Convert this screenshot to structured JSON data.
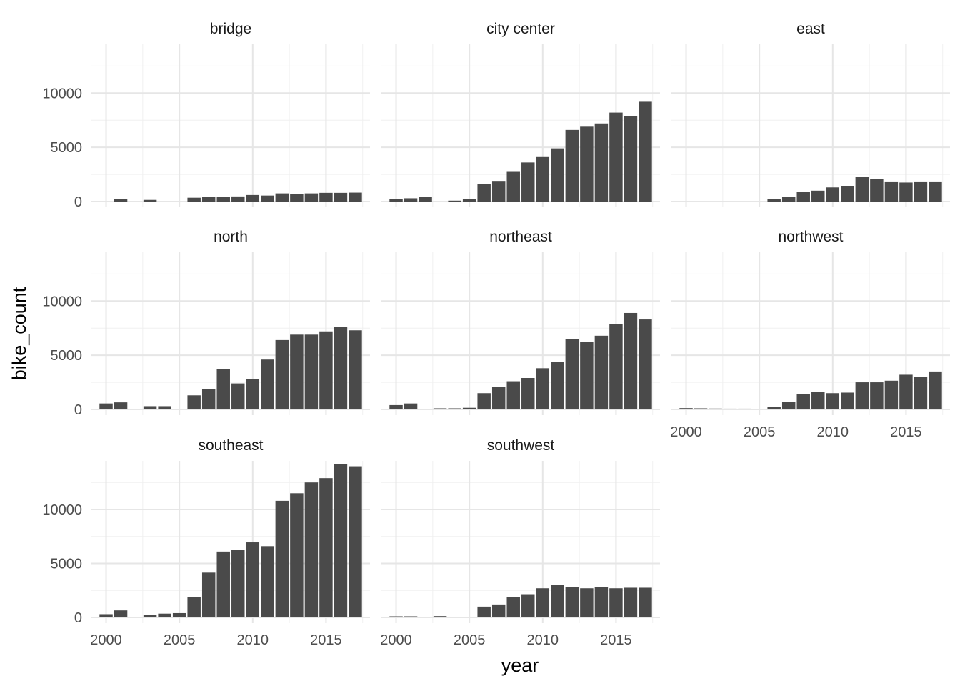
{
  "chart_data": {
    "type": "bar",
    "xlabel": "year",
    "ylabel": "bike_count",
    "xlim": [
      1999,
      2018
    ],
    "ylim": [
      0,
      14500
    ],
    "x_ticks": [
      2000,
      2005,
      2010,
      2015
    ],
    "x_tick_labels": [
      "2000",
      "2005",
      "2010",
      "2015"
    ],
    "y_ticks": [
      0,
      5000,
      10000
    ],
    "y_tick_labels": [
      "0",
      "5000",
      "10000"
    ],
    "grid": true,
    "bar_color": "#4a4a4a",
    "years": [
      2000,
      2001,
      2002,
      2003,
      2004,
      2005,
      2006,
      2007,
      2008,
      2009,
      2010,
      2011,
      2012,
      2013,
      2014,
      2015,
      2016,
      2017
    ],
    "panels": [
      {
        "name": "bridge",
        "values": [
          0,
          200,
          0,
          150,
          0,
          0,
          350,
          400,
          420,
          470,
          600,
          550,
          750,
          700,
          750,
          800,
          800,
          820
        ]
      },
      {
        "name": "city center",
        "values": [
          250,
          300,
          450,
          0,
          80,
          200,
          1600,
          1900,
          2800,
          3600,
          4100,
          4900,
          6600,
          6900,
          7200,
          8200,
          7900,
          9200
        ]
      },
      {
        "name": "east",
        "values": [
          0,
          0,
          0,
          0,
          0,
          0,
          250,
          450,
          900,
          1000,
          1300,
          1450,
          2300,
          2100,
          1850,
          1750,
          1850,
          1850
        ]
      },
      {
        "name": "north",
        "values": [
          550,
          650,
          0,
          300,
          300,
          0,
          1300,
          1900,
          3700,
          2400,
          2800,
          4600,
          6400,
          6900,
          6900,
          7200,
          7600,
          7300
        ]
      },
      {
        "name": "northeast",
        "values": [
          400,
          550,
          0,
          100,
          100,
          150,
          1500,
          2100,
          2600,
          2900,
          3800,
          4400,
          6500,
          6200,
          6800,
          7900,
          8900,
          8300
        ]
      },
      {
        "name": "northwest",
        "values": [
          120,
          100,
          80,
          70,
          70,
          0,
          200,
          700,
          1400,
          1600,
          1500,
          1550,
          2500,
          2500,
          2650,
          3200,
          3000,
          3500
        ]
      },
      {
        "name": "southeast",
        "values": [
          300,
          650,
          0,
          250,
          350,
          400,
          1900,
          4150,
          6100,
          6250,
          6950,
          6600,
          10800,
          11500,
          12500,
          12900,
          14200,
          14000
        ]
      },
      {
        "name": "southwest",
        "values": [
          100,
          100,
          0,
          120,
          0,
          0,
          1000,
          1200,
          1900,
          2150,
          2700,
          3000,
          2800,
          2700,
          2800,
          2700,
          2750,
          2750
        ]
      }
    ]
  }
}
